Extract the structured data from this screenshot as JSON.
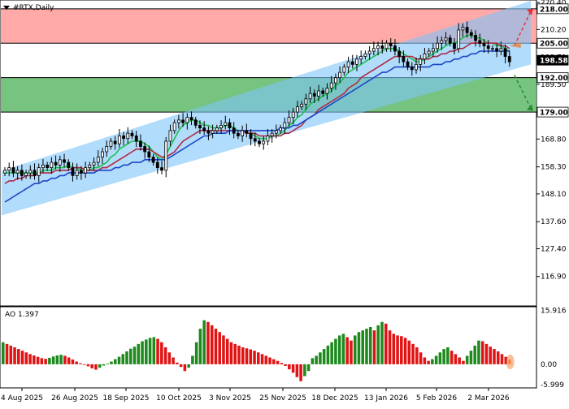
{
  "window": {
    "symbol_title": "#RTX,Daily",
    "menu_icon": "triangle-down-icon"
  },
  "chart_data": [
    {
      "type": "candlestick",
      "title": "#RTX,Daily",
      "ylim": [
        106.7,
        220.4
      ],
      "yticks": [
        116.9,
        127.4,
        137.6,
        148.1,
        158.3,
        168.8,
        179.0,
        189.5,
        199.7,
        210.2,
        220.4
      ],
      "ytick_labels": [
        "116.90",
        "127.40",
        "137.60",
        "148.10",
        "158.30",
        "168.80",
        "179.00",
        "189.50",
        "199.70",
        "210.20",
        "220.40"
      ],
      "price_labels": [
        {
          "value": 218.0,
          "text": "218.00",
          "color": "#000000"
        },
        {
          "value": 205.0,
          "text": "205.00",
          "color": "#000000"
        },
        {
          "value": 198.58,
          "text": "198.58",
          "color": "#ffffff"
        },
        {
          "value": 192.0,
          "text": "192.00",
          "color": "#000000"
        },
        {
          "value": 179.0,
          "text": "179.00",
          "color": "#000000"
        }
      ],
      "zones": [
        {
          "name": "resistance",
          "from": 205.0,
          "to": 218.0,
          "color": "#ff9a9a"
        },
        {
          "name": "support",
          "from": 179.0,
          "to": 192.0,
          "color": "#5fb86a"
        }
      ],
      "x_labels": [
        "4 Aug 2025",
        "26 Aug 2025",
        "18 Sep 2025",
        "10 Oct 2025",
        "3 Nov 2025",
        "25 Nov 2025",
        "18 Dec 2025",
        "13 Jan 2026",
        "5 Feb 2026",
        "2 Mar 2026"
      ],
      "closes": [
        157,
        158,
        156,
        157,
        155,
        156,
        157,
        155,
        158,
        159,
        158,
        160,
        159,
        161,
        160,
        158,
        155,
        157,
        156,
        158,
        159,
        160,
        162,
        164,
        166,
        168,
        167,
        170,
        169,
        171,
        170,
        168,
        166,
        164,
        162,
        160,
        158,
        157,
        168,
        172,
        175,
        176,
        175,
        177,
        176,
        174,
        173,
        172,
        171,
        172,
        173,
        174,
        175,
        173,
        171,
        170,
        172,
        171,
        169,
        168,
        167,
        168,
        170,
        171,
        172,
        173,
        175,
        177,
        179,
        181,
        182,
        184,
        186,
        185,
        187,
        186,
        188,
        190,
        192,
        194,
        196,
        198,
        197,
        199,
        200,
        201,
        202,
        203,
        204,
        203,
        205,
        204,
        202,
        200,
        198,
        196,
        195,
        197,
        199,
        201,
        202,
        203,
        205,
        206,
        207,
        205,
        203,
        210,
        211,
        209,
        208,
        206,
        205,
        204,
        203,
        203,
        202,
        203,
        200,
        198
      ],
      "channel": {
        "upper": [
          [
            0,
            156.8
          ],
          [
            131,
            221.0
          ]
        ],
        "lower": [
          [
            0,
            140.0
          ],
          [
            131,
            197.0
          ]
        ],
        "color": "#7fc4f8"
      },
      "moving_averages": [
        {
          "color": "#19c24a",
          "values": [
            156,
            156,
            156,
            156,
            156,
            156,
            156,
            156,
            156,
            157,
            157,
            157,
            158,
            158,
            158,
            159,
            158,
            158,
            157,
            157,
            157,
            158,
            158,
            159,
            160,
            162,
            163,
            165,
            166,
            167,
            168,
            168,
            168,
            167,
            166,
            164,
            162,
            161,
            163,
            166,
            169,
            172,
            174,
            175,
            176,
            176,
            175,
            174,
            174,
            173,
            173,
            173,
            174,
            174,
            173,
            172,
            172,
            171,
            171,
            170,
            169,
            169,
            169,
            170,
            170,
            171,
            172,
            174,
            175,
            177,
            178,
            180,
            182,
            183,
            184,
            185,
            186,
            187,
            189,
            190,
            192,
            194,
            195,
            196,
            197,
            198,
            199,
            200,
            201,
            202,
            203,
            203,
            203,
            202,
            201,
            200,
            199,
            198,
            198,
            199,
            200,
            201,
            202,
            203,
            204,
            205,
            205,
            206,
            207,
            208,
            208,
            207,
            207,
            206,
            205,
            205,
            204,
            204,
            203,
            202
          ]
        },
        {
          "color": "#b02a45",
          "values": [
            152,
            153,
            153,
            154,
            154,
            155,
            155,
            155,
            156,
            156,
            156,
            156,
            157,
            157,
            157,
            157,
            158,
            158,
            158,
            157,
            157,
            157,
            157,
            158,
            158,
            159,
            160,
            161,
            162,
            163,
            164,
            165,
            165,
            165,
            165,
            164,
            163,
            162,
            162,
            163,
            164,
            166,
            168,
            169,
            170,
            171,
            172,
            172,
            172,
            172,
            172,
            172,
            172,
            172,
            172,
            172,
            172,
            171,
            171,
            171,
            170,
            170,
            170,
            170,
            170,
            170,
            171,
            171,
            172,
            173,
            174,
            176,
            177,
            178,
            180,
            181,
            182,
            183,
            184,
            185,
            186,
            188,
            189,
            190,
            192,
            193,
            194,
            195,
            196,
            197,
            198,
            199,
            200,
            200,
            200,
            200,
            200,
            199,
            199,
            199,
            199,
            200,
            200,
            201,
            201,
            202,
            202,
            203,
            203,
            204,
            205,
            205,
            205,
            205,
            205,
            205,
            205,
            204,
            204,
            203
          ]
        },
        {
          "color": "#1c47c8",
          "values": [
            145,
            146,
            147,
            148,
            149,
            150,
            151,
            152,
            152,
            153,
            153,
            154,
            154,
            155,
            155,
            156,
            156,
            156,
            156,
            156,
            156,
            156,
            157,
            157,
            157,
            157,
            158,
            158,
            159,
            159,
            160,
            160,
            160,
            161,
            161,
            161,
            161,
            161,
            161,
            162,
            163,
            164,
            165,
            166,
            167,
            168,
            169,
            170,
            170,
            171,
            171,
            171,
            171,
            172,
            172,
            172,
            172,
            172,
            172,
            172,
            172,
            172,
            172,
            172,
            172,
            173,
            173,
            173,
            174,
            174,
            175,
            176,
            177,
            178,
            179,
            180,
            181,
            182,
            183,
            184,
            185,
            186,
            187,
            188,
            189,
            190,
            191,
            192,
            193,
            194,
            194,
            195,
            196,
            196,
            196,
            196,
            196,
            196,
            196,
            196,
            196,
            197,
            197,
            197,
            198,
            198,
            199,
            199,
            200,
            200,
            201,
            201,
            202,
            202,
            202,
            202,
            202,
            202,
            202,
            202
          ]
        }
      ],
      "projection_arrows": [
        {
          "from": 204.0,
          "to": 218.0,
          "color": "#e8323a"
        },
        {
          "from": 193.0,
          "to": 179.5,
          "color": "#2f8a2f"
        }
      ]
    },
    {
      "type": "histogram",
      "title": "AO 1.397",
      "ylim": [
        -6.5,
        16.5
      ],
      "ytick_labels": [
        "15.916",
        "0.00",
        "-5.999"
      ],
      "yticks": [
        15.916,
        0.0,
        -5.999
      ],
      "colors": {
        "up": "#1e8a1e",
        "down": "#e01414",
        "last": "#f08a4a"
      },
      "values": [
        6.5,
        6.0,
        5.5,
        5.0,
        4.5,
        4.0,
        3.5,
        3.0,
        2.6,
        2.2,
        1.8,
        1.6,
        1.9,
        2.3,
        2.6,
        2.8,
        2.5,
        2.0,
        1.4,
        0.8,
        0.3,
        -0.2,
        -0.6,
        -1.2,
        -1.6,
        -1.0,
        -0.4,
        0.2,
        0.8,
        1.5,
        2.2,
        3.0,
        3.8,
        4.6,
        5.2,
        6.0,
        6.8,
        7.3,
        7.8,
        8.0,
        7.5,
        6.5,
        5.0,
        3.5,
        2.0,
        0.5,
        -0.8,
        -2.0,
        -1.0,
        2.5,
        6.5,
        10.5,
        13.0,
        12.5,
        11.5,
        10.5,
        9.5,
        8.5,
        7.5,
        6.5,
        6.0,
        5.5,
        5.0,
        4.7,
        4.4,
        4.0,
        3.5,
        3.0,
        2.5,
        2.0,
        1.5,
        1.0,
        0.4,
        -0.5,
        -1.5,
        -2.5,
        -3.8,
        -5.0,
        -3.5,
        -2.0,
        1.8,
        2.5,
        3.5,
        4.5,
        5.5,
        6.5,
        7.5,
        8.5,
        9.0,
        8.0,
        7.0,
        8.5,
        9.5,
        10.0,
        10.5,
        11.0,
        10.0,
        11.5,
        12.5,
        12.0,
        10.0,
        9.0,
        8.5,
        8.3,
        7.8,
        7.0,
        6.0,
        5.0,
        3.5,
        2.0,
        1.0,
        1.5,
        2.5,
        3.5,
        4.5,
        5.0,
        4.0,
        3.0,
        2.0,
        1.0,
        2.5,
        4.0,
        5.5,
        7.0,
        6.8,
        6.0,
        5.2,
        4.5,
        3.8,
        3.0,
        2.2,
        1.397
      ]
    }
  ]
}
